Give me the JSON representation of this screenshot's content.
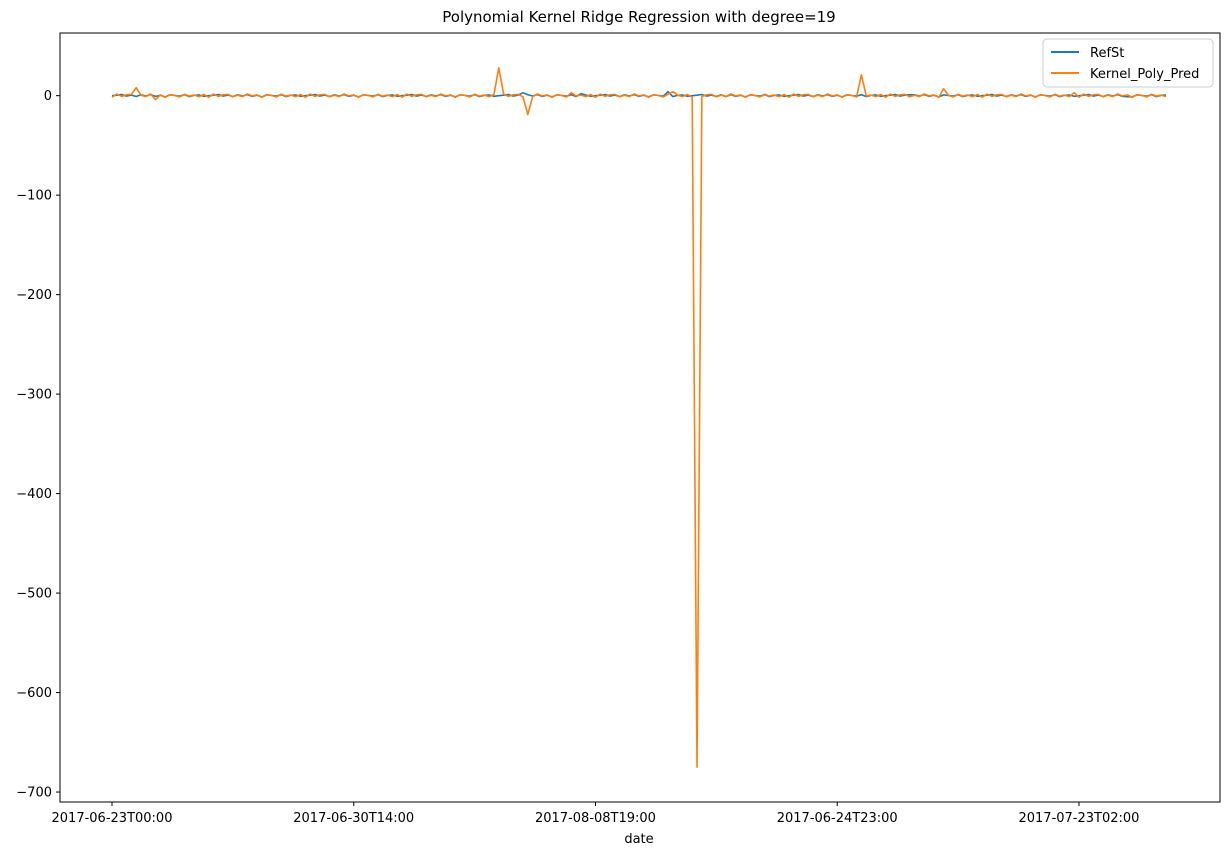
{
  "chart_data": {
    "type": "line",
    "title": "Polynomial Kernel Ridge Regression with degree=19",
    "xlabel": "date",
    "ylabel": "",
    "x_tick_labels": [
      "2017-06-23T00:00",
      "2017-06-30T14:00",
      "2017-08-08T19:00",
      "2017-06-24T23:00",
      "2017-07-23T02:00"
    ],
    "x_tick_index": [
      0,
      50,
      100,
      150,
      200
    ],
    "n_points": 219,
    "ylim": [
      -710,
      63
    ],
    "y_ticks": [
      0,
      -100,
      -200,
      -300,
      -400,
      -500,
      -600,
      -700
    ],
    "grid": false,
    "legend_position": "top-right",
    "series": [
      {
        "name": "RefSt",
        "color": "#1f77b4",
        "base": [
          0.0,
          0.5,
          1.2,
          -0.4,
          0.6,
          -0.8,
          0.9,
          -0.3,
          1.1,
          -0.7,
          0.4,
          -1.2,
          0.8,
          0.2,
          -0.5,
          1.0,
          -0.9,
          0.3,
          0.7,
          -0.6
        ],
        "spikes": [
          [
            85,
            3
          ],
          [
            97,
            2
          ],
          [
            115,
            4
          ],
          [
            127,
            -1
          ],
          [
            165,
            1
          ],
          [
            190,
            0.5
          ],
          [
            210,
            -1
          ]
        ]
      },
      {
        "name": "Kernel_Poly_Pred",
        "color": "#ff7f0e",
        "base": [
          -1.5,
          1.6,
          -0.7,
          0.9,
          1.3,
          -1.1,
          0.5,
          -0.9,
          1.7,
          -0.2,
          0.8,
          -1.6,
          1.0,
          0.3,
          -1.3,
          1.4,
          -0.4,
          0.6,
          -1.0,
          1.2
        ],
        "spikes": [
          [
            5,
            8
          ],
          [
            9,
            -4
          ],
          [
            80,
            28
          ],
          [
            86,
            -19
          ],
          [
            95,
            3
          ],
          [
            116,
            4
          ],
          [
            121,
            -675
          ],
          [
            155,
            21
          ],
          [
            172,
            7
          ],
          [
            199,
            3
          ]
        ]
      }
    ]
  }
}
